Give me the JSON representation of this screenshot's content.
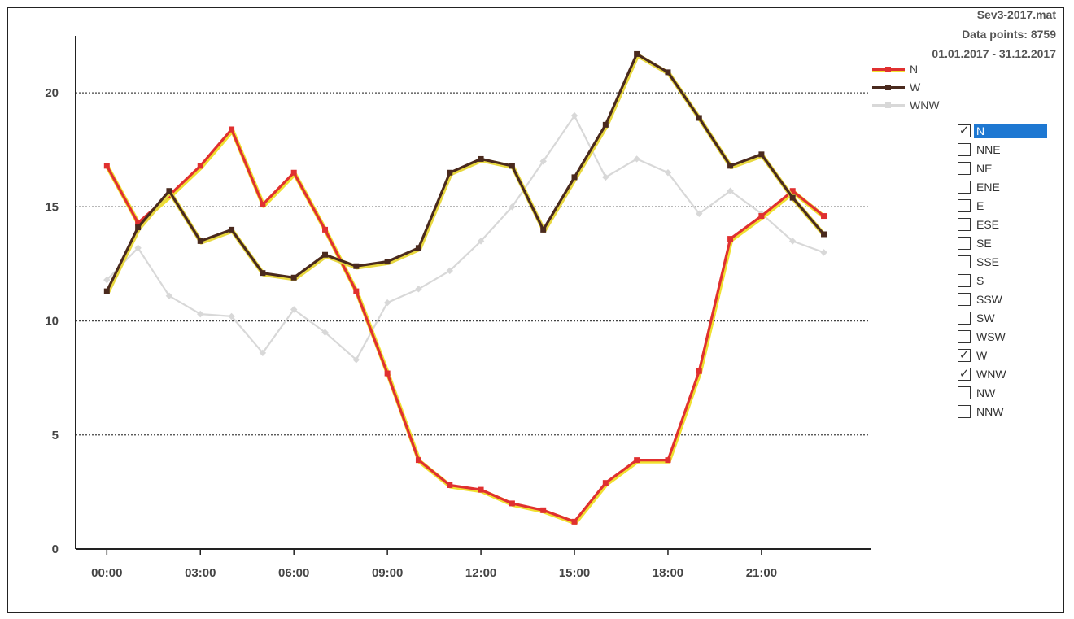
{
  "header": {
    "file": "Sev3-2017.mat",
    "data_points": "Data points: 8759",
    "date_range": "01.01.2017 - 31.12.2017"
  },
  "colors": {
    "N": "#e03030",
    "N_highlight": "#f0e030",
    "W": "#4a2a1e",
    "W_highlight": "#e8d840",
    "WNW": "#d8d8d8",
    "selected": "#1e78d2"
  },
  "directions": [
    {
      "label": "N",
      "checked": true,
      "selected": true
    },
    {
      "label": "NNE",
      "checked": false,
      "selected": false
    },
    {
      "label": "NE",
      "checked": false,
      "selected": false
    },
    {
      "label": "ENE",
      "checked": false,
      "selected": false
    },
    {
      "label": "E",
      "checked": false,
      "selected": false
    },
    {
      "label": "ESE",
      "checked": false,
      "selected": false
    },
    {
      "label": "SE",
      "checked": false,
      "selected": false
    },
    {
      "label": "SSE",
      "checked": false,
      "selected": false
    },
    {
      "label": "S",
      "checked": false,
      "selected": false
    },
    {
      "label": "SSW",
      "checked": false,
      "selected": false
    },
    {
      "label": "SW",
      "checked": false,
      "selected": false
    },
    {
      "label": "WSW",
      "checked": false,
      "selected": false
    },
    {
      "label": "W",
      "checked": true,
      "selected": false
    },
    {
      "label": "WNW",
      "checked": true,
      "selected": false
    },
    {
      "label": "NW",
      "checked": false,
      "selected": false
    },
    {
      "label": "NNW",
      "checked": false,
      "selected": false
    }
  ],
  "chart_data": {
    "type": "line",
    "title": "",
    "xlabel": "",
    "ylabel": "",
    "x": [
      0,
      1,
      2,
      3,
      4,
      5,
      6,
      7,
      8,
      9,
      10,
      11,
      12,
      13,
      14,
      15,
      16,
      17,
      18,
      19,
      20,
      21,
      22,
      23
    ],
    "x_ticks": [
      0,
      3,
      6,
      9,
      12,
      15,
      18,
      21
    ],
    "x_tick_labels": [
      "00:00",
      "03:00",
      "06:00",
      "09:00",
      "12:00",
      "15:00",
      "18:00",
      "21:00"
    ],
    "xlim": [
      -1,
      24.5
    ],
    "ylim": [
      0,
      22.5
    ],
    "y_ticks": [
      0,
      5,
      10,
      15,
      20
    ],
    "y_tick_labels": [
      "0",
      "5",
      "10",
      "15",
      "20"
    ],
    "grid": "horizontal dotted",
    "legend": "top-right",
    "series": [
      {
        "name": "N",
        "values": [
          16.8,
          14.3,
          15.5,
          16.8,
          18.4,
          15.1,
          16.5,
          14.0,
          11.3,
          7.7,
          3.9,
          2.8,
          2.6,
          2.0,
          1.7,
          1.2,
          2.9,
          3.9,
          3.9,
          7.8,
          13.6,
          14.6,
          15.7,
          14.6
        ]
      },
      {
        "name": "W",
        "values": [
          11.3,
          14.1,
          15.7,
          13.5,
          14.0,
          12.1,
          11.9,
          12.9,
          12.4,
          12.6,
          13.2,
          16.5,
          17.1,
          16.8,
          14.0,
          16.3,
          18.6,
          21.7,
          20.9,
          18.9,
          16.8,
          17.3,
          15.4,
          13.8
        ]
      },
      {
        "name": "WNW",
        "values": [
          11.8,
          13.2,
          11.1,
          10.3,
          10.2,
          8.6,
          10.5,
          9.5,
          8.3,
          10.8,
          11.4,
          12.2,
          13.5,
          15.0,
          17.0,
          19.0,
          16.3,
          17.1,
          16.5,
          14.7,
          15.7,
          14.7,
          13.5,
          13.0
        ]
      }
    ]
  }
}
